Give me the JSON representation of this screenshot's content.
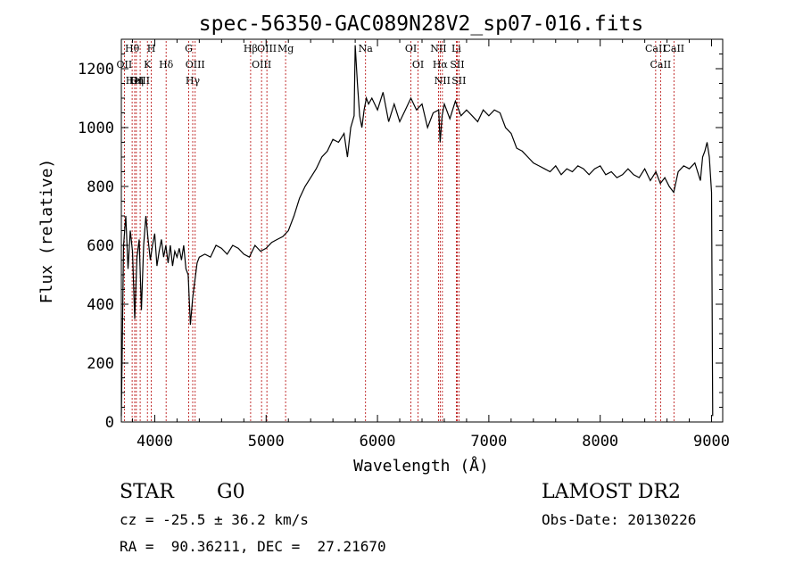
{
  "chart_data": {
    "type": "line",
    "title": "spec-56350-GAC089N28V2_sp07-016.fits",
    "xlabel": "Wavelength (Å)",
    "ylabel": "Flux (relative)",
    "xlim": [
      3700,
      9100
    ],
    "ylim": [
      0,
      1300
    ],
    "x_ticks": [
      4000,
      5000,
      6000,
      7000,
      8000,
      9000
    ],
    "y_ticks": [
      0,
      200,
      400,
      600,
      800,
      1000,
      1200
    ],
    "x_ticks_text": [
      "4000",
      "5000",
      "6000",
      "7000",
      "8000",
      "9000"
    ],
    "y_ticks_text": [
      "0",
      "200",
      "400",
      "600",
      "800",
      "1000",
      "1200"
    ],
    "grid": false,
    "series": [
      {
        "color": "#000000",
        "x": [
          3700,
          3720,
          3740,
          3760,
          3780,
          3800,
          3820,
          3840,
          3860,
          3880,
          3900,
          3920,
          3940,
          3960,
          3980,
          4000,
          4020,
          4040,
          4060,
          4080,
          4100,
          4120,
          4140,
          4160,
          4180,
          4200,
          4220,
          4240,
          4260,
          4280,
          4300,
          4320,
          4340,
          4360,
          4380,
          4400,
          4450,
          4500,
          4550,
          4600,
          4650,
          4700,
          4750,
          4800,
          4850,
          4900,
          4950,
          5000,
          5050,
          5100,
          5150,
          5200,
          5250,
          5300,
          5350,
          5400,
          5450,
          5500,
          5550,
          5600,
          5650,
          5700,
          5730,
          5760,
          5790,
          5800,
          5820,
          5840,
          5860,
          5880,
          5900,
          5920,
          5950,
          6000,
          6050,
          6100,
          6150,
          6200,
          6250,
          6300,
          6350,
          6400,
          6450,
          6500,
          6550,
          6563,
          6580,
          6600,
          6650,
          6700,
          6750,
          6800,
          6850,
          6900,
          6950,
          7000,
          7050,
          7100,
          7150,
          7200,
          7250,
          7300,
          7350,
          7400,
          7450,
          7500,
          7550,
          7600,
          7650,
          7700,
          7750,
          7800,
          7850,
          7900,
          7950,
          8000,
          8050,
          8100,
          8150,
          8200,
          8250,
          8300,
          8350,
          8400,
          8450,
          8500,
          8540,
          8580,
          8620,
          8660,
          8700,
          8750,
          8800,
          8850,
          8900,
          8920,
          8940,
          8960,
          8980,
          9000,
          9010
        ],
        "y": [
          20,
          600,
          700,
          520,
          650,
          580,
          350,
          560,
          620,
          380,
          600,
          700,
          620,
          550,
          600,
          640,
          530,
          580,
          620,
          560,
          600,
          540,
          600,
          530,
          580,
          560,
          590,
          550,
          600,
          520,
          500,
          330,
          420,
          480,
          540,
          560,
          570,
          560,
          600,
          590,
          570,
          600,
          590,
          570,
          560,
          600,
          580,
          590,
          610,
          620,
          630,
          650,
          700,
          760,
          800,
          830,
          860,
          900,
          920,
          960,
          950,
          980,
          900,
          1000,
          1040,
          1280,
          1150,
          1040,
          1000,
          1060,
          1100,
          1080,
          1100,
          1060,
          1120,
          1020,
          1080,
          1020,
          1060,
          1100,
          1060,
          1080,
          1000,
          1050,
          1060,
          950,
          1040,
          1080,
          1030,
          1090,
          1040,
          1060,
          1040,
          1020,
          1060,
          1040,
          1060,
          1050,
          1000,
          980,
          930,
          920,
          900,
          880,
          870,
          860,
          850,
          870,
          840,
          860,
          850,
          870,
          860,
          840,
          860,
          870,
          840,
          850,
          830,
          840,
          860,
          840,
          830,
          860,
          820,
          850,
          810,
          830,
          800,
          780,
          850,
          870,
          860,
          880,
          820,
          900,
          920,
          950,
          900,
          780,
          20
        ]
      }
    ],
    "line_labels": [
      {
        "name": "Hθ",
        "wavelength": 3797
      },
      {
        "name": "OII",
        "wavelength": 3727
      },
      {
        "name": "HeI",
        "wavelength": 3820
      },
      {
        "name": "Hη",
        "wavelength": 3835
      },
      {
        "name": "OIII",
        "wavelength": 3869
      },
      {
        "name": "K",
        "wavelength": 3934
      },
      {
        "name": "H",
        "wavelength": 3969
      },
      {
        "name": "Hδ",
        "wavelength": 4102
      },
      {
        "name": "G",
        "wavelength": 4305
      },
      {
        "name": "OIII",
        "wavelength": 4363
      },
      {
        "name": "Hγ",
        "wavelength": 4341
      },
      {
        "name": "Hβ",
        "wavelength": 4861
      },
      {
        "name": "OIII",
        "wavelength": 4959
      },
      {
        "name": "OIII",
        "wavelength": 5007
      },
      {
        "name": "Mg",
        "wavelength": 5175
      },
      {
        "name": "Na",
        "wavelength": 5893
      },
      {
        "name": "OI",
        "wavelength": 6300
      },
      {
        "name": "OI",
        "wavelength": 6364
      },
      {
        "name": "NII",
        "wavelength": 6548
      },
      {
        "name": "Hα",
        "wavelength": 6563
      },
      {
        "name": "NII",
        "wavelength": 6583
      },
      {
        "name": "Li",
        "wavelength": 6708
      },
      {
        "name": "SII",
        "wavelength": 6716
      },
      {
        "name": "SII",
        "wavelength": 6731
      },
      {
        "name": "CaII",
        "wavelength": 8498
      },
      {
        "name": "CaII",
        "wavelength": 8542
      },
      {
        "name": "CaII",
        "wavelength": 8662
      }
    ]
  },
  "info": {
    "class_label": "STAR",
    "subclass_label": "G0",
    "survey": "LAMOST DR2",
    "cz": "cz = -25.5 ± 36.2 km/s",
    "obs_date": "Obs-Date: 20130226",
    "radec": "RA =  90.36211, DEC =  27.21670"
  }
}
